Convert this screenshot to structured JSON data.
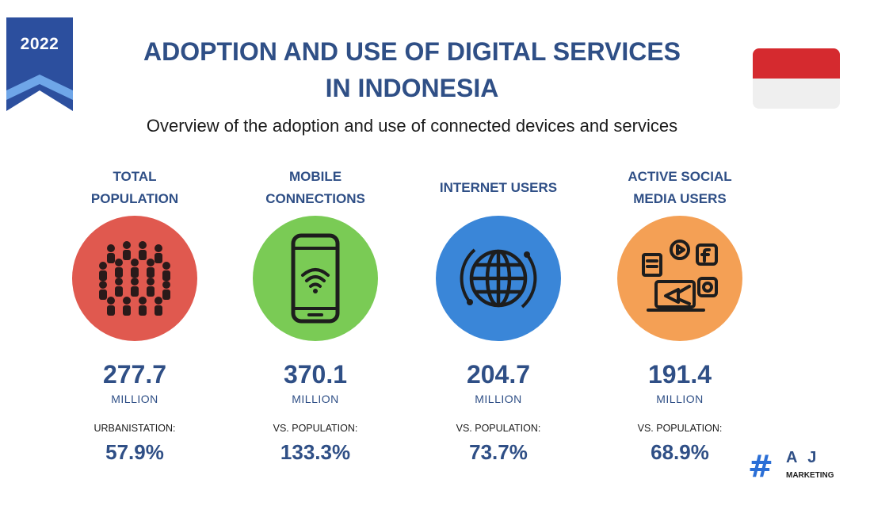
{
  "badge": {
    "year": "2022"
  },
  "header": {
    "title_line1": "ADOPTION AND USE OF DIGITAL SERVICES",
    "title_line2": "IN INDONESIA",
    "subtitle": "Overview of the adoption and use of connected devices and services"
  },
  "colors": {
    "title": "#2f4f86",
    "ribbon": "#2c4f9e",
    "population": "#e0594f",
    "mobile": "#7acb55",
    "internet": "#3a86d8",
    "social": "#f4a055",
    "flag_red": "#d52a2f",
    "flag_white": "#efefef"
  },
  "stats": [
    {
      "label_line1": "TOTAL",
      "label_line2": "POPULATION",
      "icon": "people-crowd-icon",
      "value": "277.7",
      "unit": "MILLION",
      "metric_label": "URBANISTATION:",
      "metric_value": "57.9%"
    },
    {
      "label_line1": "MOBILE",
      "label_line2": "CONNECTIONS",
      "icon": "smartphone-wifi-icon",
      "value": "370.1",
      "unit": "MILLION",
      "metric_label": "VS. POPULATION:",
      "metric_value": "133.3%"
    },
    {
      "label_line1": "INTERNET USERS",
      "label_line2": "",
      "icon": "globe-icon",
      "value": "204.7",
      "unit": "MILLION",
      "metric_label": "VS. POPULATION:",
      "metric_value": "73.7%"
    },
    {
      "label_line1": "ACTIVE SOCIAL",
      "label_line2": "MEDIA USERS",
      "icon": "social-media-megaphone-icon",
      "value": "191.4",
      "unit": "MILLION",
      "metric_label": "VS. POPULATION:",
      "metric_value": "68.9%"
    }
  ],
  "logo": {
    "hash": "#",
    "letters": "A J",
    "word": "MARKETING"
  }
}
